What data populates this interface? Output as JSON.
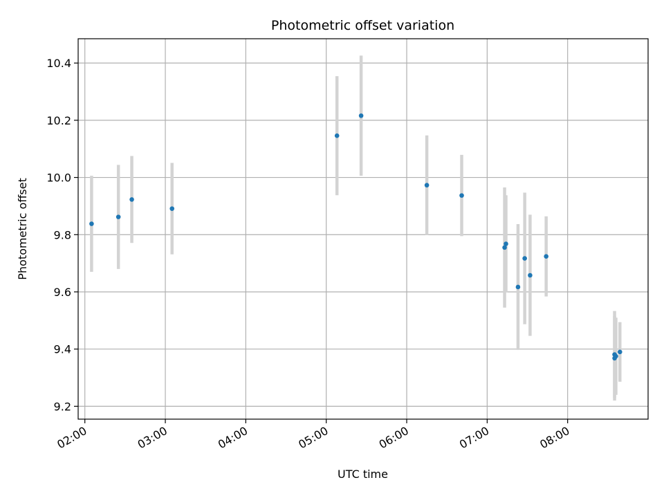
{
  "chart_data": {
    "type": "scatter",
    "title": "Photometric offset variation",
    "xlabel": "UTC time",
    "ylabel": "Photometric offset",
    "xlim": [
      "01:55",
      "09:00"
    ],
    "ylim": [
      9.155,
      10.485
    ],
    "x_ticks": [
      "02:00",
      "03:00",
      "04:00",
      "05:00",
      "06:00",
      "07:00",
      "08:00"
    ],
    "y_ticks": [
      "9.2",
      "9.4",
      "9.6",
      "9.8",
      "10.0",
      "10.2",
      "10.4"
    ],
    "grid": true,
    "errorbar_color": "#d3d3d3",
    "point_color": "#1f77b4",
    "series": [
      {
        "points": [
          {
            "x": "02:05",
            "y": 9.838,
            "yerr": 0.168
          },
          {
            "x": "02:25",
            "y": 9.862,
            "yerr": 0.182
          },
          {
            "x": "02:35",
            "y": 9.923,
            "yerr": 0.152
          },
          {
            "x": "03:05",
            "y": 9.891,
            "yerr": 0.16
          },
          {
            "x": "05:08",
            "y": 10.146,
            "yerr": 0.208
          },
          {
            "x": "05:26",
            "y": 10.216,
            "yerr": 0.21
          },
          {
            "x": "06:15",
            "y": 9.973,
            "yerr": 0.174
          },
          {
            "x": "06:41",
            "y": 9.937,
            "yerr": 0.142
          },
          {
            "x": "07:13",
            "y": 9.755,
            "yerr": 0.21
          },
          {
            "x": "07:14",
            "y": 9.768,
            "yerr": 0.17
          },
          {
            "x": "07:23",
            "y": 9.617,
            "yerr": 0.22
          },
          {
            "x": "07:28",
            "y": 9.717,
            "yerr": 0.23
          },
          {
            "x": "07:32",
            "y": 9.658,
            "yerr": 0.212
          },
          {
            "x": "07:44",
            "y": 9.724,
            "yerr": 0.14
          },
          {
            "x": "08:35",
            "y": 9.381,
            "yerr": 0.152
          },
          {
            "x": "08:35",
            "y": 9.368,
            "yerr": 0.148
          },
          {
            "x": "08:36",
            "y": 9.375,
            "yerr": 0.135
          },
          {
            "x": "08:39",
            "y": 9.39,
            "yerr": 0.104
          }
        ]
      }
    ]
  }
}
